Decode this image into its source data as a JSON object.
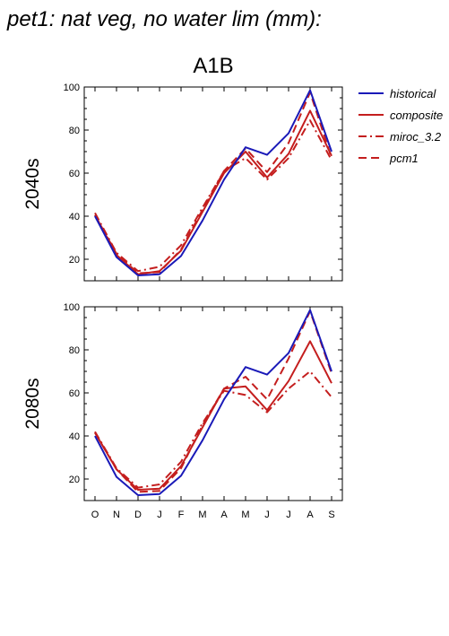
{
  "header": {
    "title": "pet1: nat veg, no water lim (mm):"
  },
  "chart_data": [
    {
      "type": "line",
      "title": "A1B",
      "ylabel": "2040s",
      "xlabel": "",
      "categories": [
        "O",
        "N",
        "D",
        "J",
        "F",
        "M",
        "A",
        "M",
        "J",
        "J",
        "A",
        "S"
      ],
      "ylim": [
        10,
        100
      ],
      "yticks": [
        20,
        40,
        60,
        80,
        100
      ],
      "ytick_labels": [
        "20",
        "40",
        "60",
        "80",
        "100"
      ],
      "grid": false,
      "legend": "top-right, outside",
      "series": [
        {
          "name": "historical",
          "color": "#1a1ab8",
          "dash": "solid",
          "values": [
            40,
            21,
            12.5,
            13,
            21.5,
            38,
            57,
            72,
            68.5,
            78.5,
            98.5,
            70
          ]
        },
        {
          "name": "composite",
          "color": "#c41e1e",
          "dash": "solid",
          "values": [
            40.5,
            22,
            13,
            14.5,
            24,
            42,
            60,
            70,
            58,
            69,
            89,
            68
          ]
        },
        {
          "name": "miroc_3.2",
          "color": "#c41e1e",
          "dash": "dashdot",
          "values": [
            41.5,
            23,
            14.5,
            16.5,
            26.5,
            44,
            61,
            67,
            57,
            67,
            84.5,
            66
          ]
        },
        {
          "name": "pcm1",
          "color": "#c41e1e",
          "dash": "dash",
          "values": [
            40.5,
            22.5,
            13.5,
            14,
            24.5,
            43,
            61,
            71.5,
            60.5,
            74,
            97.5,
            67
          ]
        }
      ]
    },
    {
      "type": "line",
      "title": "",
      "ylabel": "2080s",
      "xlabel": "",
      "categories": [
        "O",
        "N",
        "D",
        "J",
        "F",
        "M",
        "A",
        "M",
        "J",
        "J",
        "A",
        "S"
      ],
      "ylim": [
        10,
        100
      ],
      "yticks": [
        20,
        40,
        60,
        80,
        100
      ],
      "ytick_labels": [
        "20",
        "40",
        "60",
        "80",
        "100"
      ],
      "grid": false,
      "series": [
        {
          "name": "historical",
          "color": "#1a1ab8",
          "dash": "solid",
          "values": [
            40,
            21,
            12.5,
            13,
            21.5,
            38,
            57,
            72,
            68.5,
            78.5,
            98.5,
            70
          ]
        },
        {
          "name": "composite",
          "color": "#c41e1e",
          "dash": "solid",
          "values": [
            41.5,
            24.5,
            15,
            15.5,
            26,
            44,
            62,
            63,
            52,
            65.5,
            84,
            64.5
          ]
        },
        {
          "name": "miroc_3.2",
          "color": "#c41e1e",
          "dash": "dashdot",
          "values": [
            42,
            25,
            16,
            17.5,
            28,
            46,
            61,
            59,
            51,
            62,
            70,
            58
          ]
        },
        {
          "name": "pcm1",
          "color": "#c41e1e",
          "dash": "dash",
          "values": [
            41.5,
            24.5,
            14,
            14.5,
            25,
            45,
            62,
            67.5,
            57,
            76,
            98,
            69
          ]
        }
      ]
    }
  ]
}
